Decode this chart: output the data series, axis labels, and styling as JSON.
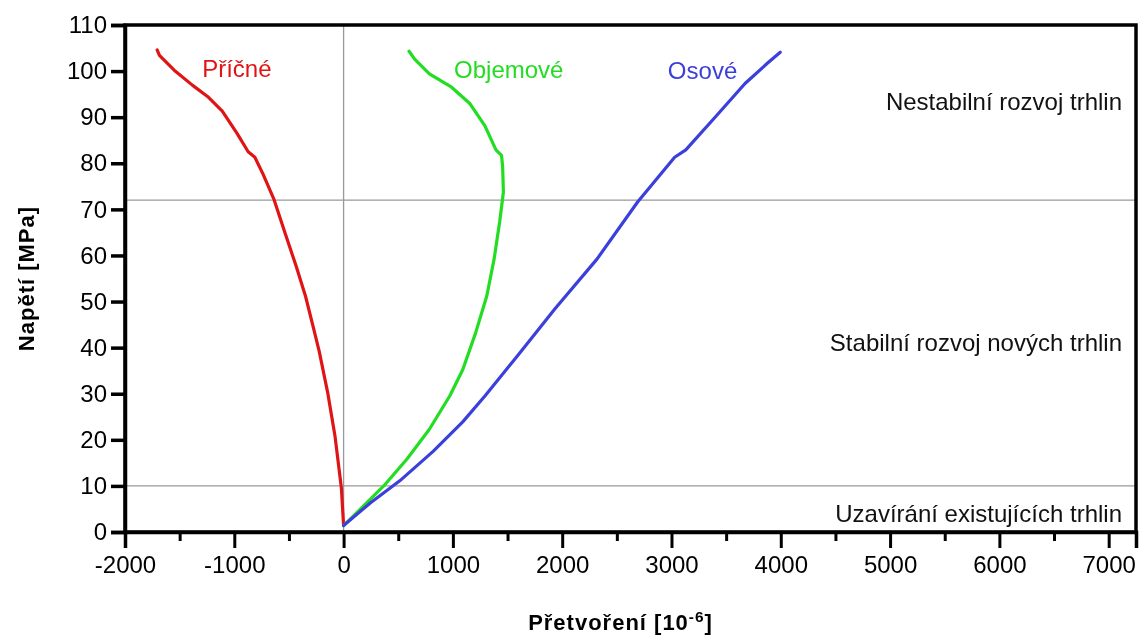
{
  "chart_data": {
    "type": "line",
    "xlabel": "Přetvoření [10$^{-6}$]",
    "ylabel": "Napětí [MPa]",
    "xlim": [
      -2000,
      7250
    ],
    "ylim": [
      0,
      110
    ],
    "xticks": [
      -2000,
      {
        "value": -1500,
        "label": null
      },
      -1000,
      {
        "value": -500,
        "label": null
      },
      0,
      {
        "value": 500,
        "label": null
      },
      1000,
      {
        "value": 1500,
        "label": null
      },
      2000,
      {
        "value": 2500,
        "label": null
      },
      3000,
      {
        "value": 3500,
        "label": null
      },
      4000,
      {
        "value": 4500,
        "label": null
      },
      5000,
      {
        "value": 5500,
        "label": null
      },
      6000,
      {
        "value": 6500,
        "label": null
      },
      7000
    ],
    "yticks": [
      0,
      10,
      20,
      30,
      40,
      50,
      60,
      70,
      80,
      90,
      100,
      110
    ],
    "grid": false,
    "legend": false,
    "marker": "none",
    "line_style": "solid",
    "ref_lines": [
      {
        "axis": "y",
        "value": 72,
        "color": "#999999"
      },
      {
        "axis": "y",
        "value": 10,
        "color": "#999999"
      },
      {
        "axis": "x",
        "value": 0,
        "color": "#999999"
      }
    ],
    "annotations": [
      "Nestabilní rozvoj trhlin",
      "Stabilní rozvoj nových trhlin",
      "Uzavírání existujících trhlin"
    ],
    "series": [
      {
        "name": "Příčné",
        "color": "#e01414",
        "x": [
          0,
          -20,
          -78,
          -146,
          -223,
          -281,
          -349,
          -433,
          -535,
          -636,
          -738,
          -812,
          -873,
          -975,
          -1110,
          -1245,
          -1381,
          -1550,
          -1685,
          -1706
        ],
        "values": [
          1.4,
          9.5,
          20.7,
          30.3,
          39.2,
          44.8,
          51.2,
          57.6,
          64.8,
          72.1,
          77.7,
          81.3,
          82.5,
          86.5,
          91.3,
          94.5,
          96.9,
          100.2,
          103.4,
          104.6
        ]
      },
      {
        "name": "Objemové",
        "color": "#22dd22",
        "x": [
          0,
          176,
          379,
          582,
          785,
          971,
          1090,
          1208,
          1310,
          1377,
          1428,
          1462,
          1455,
          1445,
          1394,
          1293,
          1157,
          988,
          785,
          650,
          599
        ],
        "values": [
          1.4,
          5.5,
          10.3,
          15.9,
          22.3,
          29.5,
          35.2,
          43.2,
          51.2,
          59.2,
          67.3,
          73.7,
          79.3,
          81.7,
          82.9,
          88.1,
          92.9,
          96.5,
          99.4,
          102.6,
          104.3
        ]
      },
      {
        "name": "Osové",
        "color": "#3b3fdc",
        "x": [
          0,
          244,
          514,
          819,
          1090,
          1293,
          1597,
          1936,
          2318,
          2690,
          3029,
          3131,
          3403,
          3673,
          3877,
          3995
        ],
        "values": [
          1.4,
          6.3,
          11.1,
          17.5,
          23.9,
          29.5,
          38.4,
          48.5,
          59.2,
          71.6,
          81.3,
          82.9,
          90.1,
          97.3,
          101.7,
          104.1
        ]
      }
    ]
  }
}
